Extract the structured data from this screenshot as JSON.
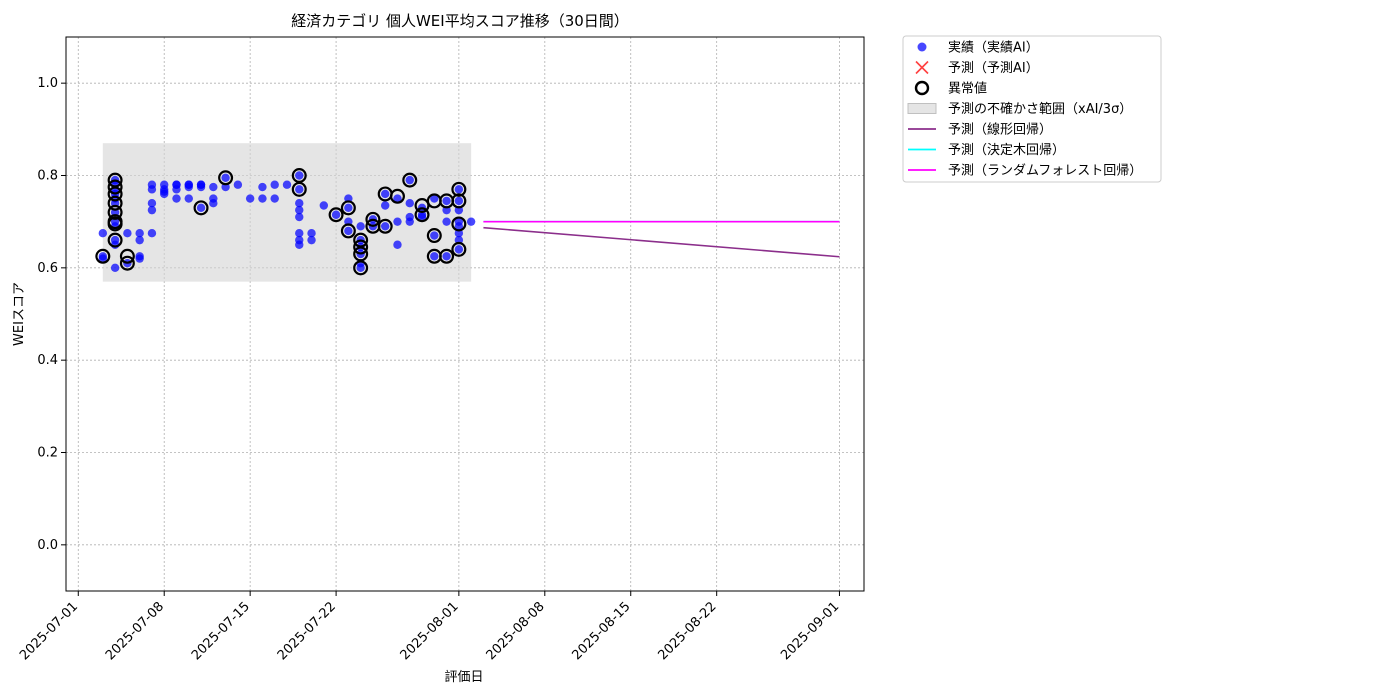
{
  "chart_data": {
    "type": "scatter",
    "title": "経済カテゴリ 個人WEI平均スコア推移（30日間）",
    "xlabel": "評価日",
    "ylabel": "WEIスコア",
    "x_axis": "date",
    "xlim": [
      "2025-06-30",
      "2025-09-03"
    ],
    "ylim": [
      -0.1,
      1.1
    ],
    "x_ticks": [
      "2025-07-01",
      "2025-07-08",
      "2025-07-15",
      "2025-07-22",
      "2025-08-01",
      "2025-08-08",
      "2025-08-15",
      "2025-08-22",
      "2025-09-01"
    ],
    "y_ticks": [
      0.0,
      0.2,
      0.4,
      0.6,
      0.8,
      1.0
    ],
    "y_tick_labels": [
      "0.0",
      "0.2",
      "0.4",
      "0.6",
      "0.8",
      "1.0"
    ],
    "grid": true,
    "legend_position": "outside-top-right",
    "uncertainty_band": {
      "name": "予測の不確かさ範囲（xAI/3σ）",
      "x_start": "2025-07-03",
      "x_end": "2025-08-02",
      "y_low": 0.57,
      "y_high": 0.87,
      "color": "#d3d3d3"
    },
    "series": [
      {
        "name": "実績（実績AI）",
        "kind": "scatter",
        "color": "#0000ff",
        "points": [
          [
            "2025-07-03",
            0.675
          ],
          [
            "2025-07-03",
            0.625
          ],
          [
            "2025-07-03",
            0.62
          ],
          [
            "2025-07-04",
            0.79
          ],
          [
            "2025-07-04",
            0.78
          ],
          [
            "2025-07-04",
            0.77
          ],
          [
            "2025-07-04",
            0.76
          ],
          [
            "2025-07-04",
            0.75
          ],
          [
            "2025-07-04",
            0.74
          ],
          [
            "2025-07-04",
            0.72
          ],
          [
            "2025-07-04",
            0.7
          ],
          [
            "2025-07-04",
            0.69
          ],
          [
            "2025-07-04",
            0.66
          ],
          [
            "2025-07-04",
            0.65
          ],
          [
            "2025-07-04",
            0.6
          ],
          [
            "2025-07-05",
            0.61
          ],
          [
            "2025-07-05",
            0.675
          ],
          [
            "2025-07-06",
            0.625
          ],
          [
            "2025-07-06",
            0.62
          ],
          [
            "2025-07-06",
            0.66
          ],
          [
            "2025-07-06",
            0.675
          ],
          [
            "2025-07-07",
            0.675
          ],
          [
            "2025-07-07",
            0.725
          ],
          [
            "2025-07-07",
            0.74
          ],
          [
            "2025-07-07",
            0.78
          ],
          [
            "2025-07-07",
            0.77
          ],
          [
            "2025-07-08",
            0.78
          ],
          [
            "2025-07-08",
            0.76
          ],
          [
            "2025-07-08",
            0.77
          ],
          [
            "2025-07-08",
            0.765
          ],
          [
            "2025-07-09",
            0.78
          ],
          [
            "2025-07-09",
            0.78
          ],
          [
            "2025-07-09",
            0.75
          ],
          [
            "2025-07-09",
            0.77
          ],
          [
            "2025-07-10",
            0.78
          ],
          [
            "2025-07-10",
            0.75
          ],
          [
            "2025-07-10",
            0.775
          ],
          [
            "2025-07-10",
            0.78
          ],
          [
            "2025-07-11",
            0.73
          ],
          [
            "2025-07-11",
            0.78
          ],
          [
            "2025-07-11",
            0.775
          ],
          [
            "2025-07-11",
            0.78
          ],
          [
            "2025-07-12",
            0.775
          ],
          [
            "2025-07-12",
            0.75
          ],
          [
            "2025-07-12",
            0.74
          ],
          [
            "2025-07-13",
            0.795
          ],
          [
            "2025-07-13",
            0.775
          ],
          [
            "2025-07-14",
            0.78
          ],
          [
            "2025-07-15",
            0.75
          ],
          [
            "2025-07-16",
            0.775
          ],
          [
            "2025-07-16",
            0.75
          ],
          [
            "2025-07-17",
            0.78
          ],
          [
            "2025-07-17",
            0.75
          ],
          [
            "2025-07-18",
            0.78
          ],
          [
            "2025-07-19",
            0.8
          ],
          [
            "2025-07-19",
            0.77
          ],
          [
            "2025-07-19",
            0.74
          ],
          [
            "2025-07-19",
            0.725
          ],
          [
            "2025-07-19",
            0.71
          ],
          [
            "2025-07-19",
            0.675
          ],
          [
            "2025-07-19",
            0.66
          ],
          [
            "2025-07-19",
            0.65
          ],
          [
            "2025-07-20",
            0.675
          ],
          [
            "2025-07-20",
            0.66
          ],
          [
            "2025-07-21",
            0.735
          ],
          [
            "2025-07-22",
            0.715
          ],
          [
            "2025-07-23",
            0.75
          ],
          [
            "2025-07-23",
            0.73
          ],
          [
            "2025-07-23",
            0.7
          ],
          [
            "2025-07-23",
            0.68
          ],
          [
            "2025-07-24",
            0.66
          ],
          [
            "2025-07-24",
            0.645
          ],
          [
            "2025-07-24",
            0.63
          ],
          [
            "2025-07-24",
            0.61
          ],
          [
            "2025-07-24",
            0.6
          ],
          [
            "2025-07-24",
            0.69
          ],
          [
            "2025-07-25",
            0.705
          ],
          [
            "2025-07-25",
            0.69
          ],
          [
            "2025-07-26",
            0.76
          ],
          [
            "2025-07-26",
            0.735
          ],
          [
            "2025-07-26",
            0.69
          ],
          [
            "2025-07-27",
            0.75
          ],
          [
            "2025-07-27",
            0.7
          ],
          [
            "2025-07-27",
            0.65
          ],
          [
            "2025-07-28",
            0.79
          ],
          [
            "2025-07-28",
            0.74
          ],
          [
            "2025-07-28",
            0.71
          ],
          [
            "2025-07-28",
            0.7
          ],
          [
            "2025-07-29",
            0.73
          ],
          [
            "2025-07-29",
            0.715
          ],
          [
            "2025-07-29",
            0.71
          ],
          [
            "2025-07-30",
            0.75
          ],
          [
            "2025-07-30",
            0.67
          ],
          [
            "2025-07-30",
            0.625
          ],
          [
            "2025-07-31",
            0.745
          ],
          [
            "2025-07-31",
            0.725
          ],
          [
            "2025-07-31",
            0.7
          ],
          [
            "2025-07-31",
            0.625
          ],
          [
            "2025-08-01",
            0.77
          ],
          [
            "2025-08-01",
            0.745
          ],
          [
            "2025-08-01",
            0.725
          ],
          [
            "2025-08-01",
            0.7
          ],
          [
            "2025-08-01",
            0.69
          ],
          [
            "2025-08-01",
            0.675
          ],
          [
            "2025-08-01",
            0.66
          ],
          [
            "2025-08-01",
            0.64
          ],
          [
            "2025-08-02",
            0.7
          ]
        ]
      },
      {
        "name": "予測（予測AI）",
        "kind": "x-marker",
        "color": "#ff0000",
        "points": []
      },
      {
        "name": "異常値",
        "kind": "ring",
        "color": "#000000",
        "points": [
          [
            "2025-07-03",
            0.625
          ],
          [
            "2025-07-04",
            0.79
          ],
          [
            "2025-07-04",
            0.775
          ],
          [
            "2025-07-04",
            0.76
          ],
          [
            "2025-07-04",
            0.74
          ],
          [
            "2025-07-04",
            0.72
          ],
          [
            "2025-07-04",
            0.7
          ],
          [
            "2025-07-04",
            0.695
          ],
          [
            "2025-07-04",
            0.66
          ],
          [
            "2025-07-05",
            0.61
          ],
          [
            "2025-07-05",
            0.625
          ],
          [
            "2025-07-11",
            0.73
          ],
          [
            "2025-07-13",
            0.795
          ],
          [
            "2025-07-19",
            0.8
          ],
          [
            "2025-07-19",
            0.77
          ],
          [
            "2025-07-22",
            0.715
          ],
          [
            "2025-07-23",
            0.73
          ],
          [
            "2025-07-23",
            0.68
          ],
          [
            "2025-07-24",
            0.66
          ],
          [
            "2025-07-24",
            0.645
          ],
          [
            "2025-07-24",
            0.63
          ],
          [
            "2025-07-24",
            0.6
          ],
          [
            "2025-07-25",
            0.69
          ],
          [
            "2025-07-25",
            0.705
          ],
          [
            "2025-07-26",
            0.76
          ],
          [
            "2025-07-26",
            0.69
          ],
          [
            "2025-07-27",
            0.755
          ],
          [
            "2025-07-28",
            0.79
          ],
          [
            "2025-07-29",
            0.735
          ],
          [
            "2025-07-29",
            0.715
          ],
          [
            "2025-07-30",
            0.745
          ],
          [
            "2025-07-30",
            0.67
          ],
          [
            "2025-07-30",
            0.625
          ],
          [
            "2025-07-31",
            0.745
          ],
          [
            "2025-07-31",
            0.625
          ],
          [
            "2025-08-01",
            0.77
          ],
          [
            "2025-08-01",
            0.745
          ],
          [
            "2025-08-01",
            0.695
          ],
          [
            "2025-08-01",
            0.64
          ]
        ]
      },
      {
        "name": "予測（線形回帰）",
        "kind": "line",
        "color": "#8b2e8b",
        "points": [
          [
            "2025-08-03",
            0.687
          ],
          [
            "2025-09-01",
            0.624
          ]
        ]
      },
      {
        "name": "予測（決定木回帰）",
        "kind": "line",
        "color": "#00ffff",
        "points": [
          [
            "2025-08-03",
            0.7
          ],
          [
            "2025-09-01",
            0.7
          ]
        ]
      },
      {
        "name": "予測（ランダムフォレスト回帰）",
        "kind": "line",
        "color": "#ff00ff",
        "points": [
          [
            "2025-08-03",
            0.7
          ],
          [
            "2025-09-01",
            0.7
          ]
        ]
      }
    ]
  }
}
